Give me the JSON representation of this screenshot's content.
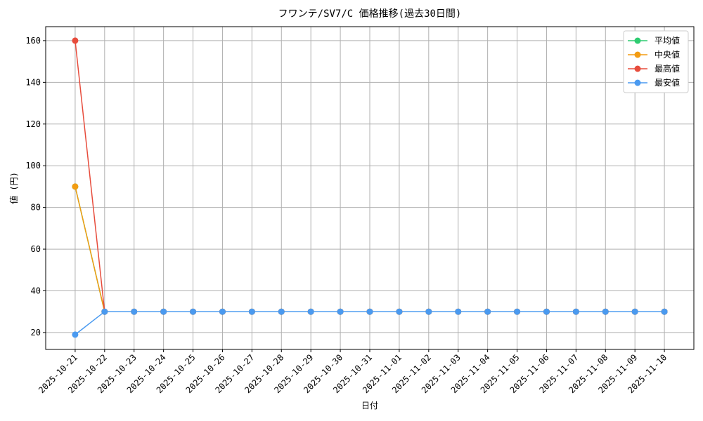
{
  "chart_data": {
    "type": "line",
    "title": "フワンテ/SV7/C 価格推移(過去30日間)",
    "x_label": "日付",
    "y_label": "値 (円)",
    "categories": [
      "2025-10-21",
      "2025-10-22",
      "2025-10-23",
      "2025-10-24",
      "2025-10-25",
      "2025-10-26",
      "2025-10-27",
      "2025-10-28",
      "2025-10-29",
      "2025-10-30",
      "2025-10-31",
      "2025-11-01",
      "2025-11-02",
      "2025-11-03",
      "2025-11-04",
      "2025-11-05",
      "2025-11-06",
      "2025-11-07",
      "2025-11-08",
      "2025-11-09",
      "2025-11-10"
    ],
    "series": [
      {
        "name": "平均値",
        "color": "#2ecc71",
        "values": [
          90,
          30,
          30,
          30,
          30,
          30,
          30,
          30,
          30,
          30,
          30,
          30,
          30,
          30,
          30,
          30,
          30,
          30,
          30,
          30,
          30
        ]
      },
      {
        "name": "中央値",
        "color": "#f39c12",
        "values": [
          90,
          30,
          30,
          30,
          30,
          30,
          30,
          30,
          30,
          30,
          30,
          30,
          30,
          30,
          30,
          30,
          30,
          30,
          30,
          30,
          30
        ]
      },
      {
        "name": "最高値",
        "color": "#e74c3c",
        "values": [
          160,
          30,
          30,
          30,
          30,
          30,
          30,
          30,
          30,
          30,
          30,
          30,
          30,
          30,
          30,
          30,
          30,
          30,
          30,
          30,
          30
        ]
      },
      {
        "name": "最安値",
        "color": "#4a9af0",
        "values": [
          19,
          30,
          30,
          30,
          30,
          30,
          30,
          30,
          30,
          30,
          30,
          30,
          30,
          30,
          30,
          30,
          30,
          30,
          30,
          30,
          30
        ]
      }
    ],
    "ylim": [
      11.9,
      166.7
    ],
    "yticks": [
      20,
      40,
      60,
      80,
      100,
      120,
      140,
      160
    ],
    "grid": true,
    "legend": "upper right"
  }
}
